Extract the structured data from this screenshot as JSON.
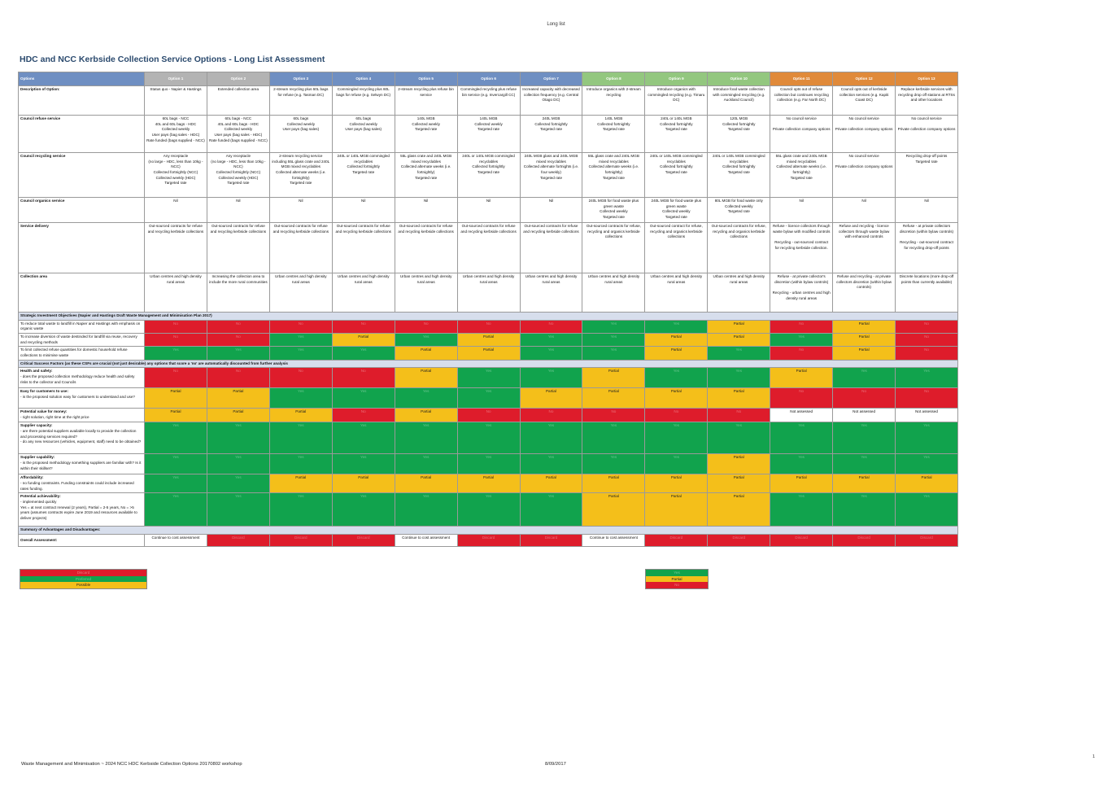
{
  "header": {
    "top_label": "Long list"
  },
  "title": "HDC and NCC Kerbside Collection Service Options - Long List Assessment",
  "columns": {
    "label_header": "Options",
    "options": [
      {
        "name": "Option 1",
        "color": "grey"
      },
      {
        "name": "Option 2",
        "color": "grey"
      },
      {
        "name": "Option 3",
        "color": "blue"
      },
      {
        "name": "Option 4",
        "color": "blue"
      },
      {
        "name": "Option 5",
        "color": "blue"
      },
      {
        "name": "Option 6",
        "color": "blue"
      },
      {
        "name": "Option 7",
        "color": "blue"
      },
      {
        "name": "Option 8",
        "color": "green"
      },
      {
        "name": "Option 9",
        "color": "green"
      },
      {
        "name": "Option 10",
        "color": "green"
      },
      {
        "name": "Option 11",
        "color": "orange"
      },
      {
        "name": "Option 12",
        "color": "orange"
      },
      {
        "name": "Option 13",
        "color": "orange"
      }
    ]
  },
  "description_rows": [
    {
      "label": "Description of Option:",
      "cells": [
        "Status quo - Napier & Hastings",
        "Extended collection area",
        "2-stream recycling plus 60L bags for refuse (e.g. Tasman DC)",
        "Commingled recycling plus 60L bags for refuse (e.g. Selwyn DC)",
        "2-stream recycling plus refuse bin service",
        "Commingled recycling plus refuse bin service (e.g. Invercargill CC)",
        "Increased capacity with decreased collection frequency (e.g. Central Otago DC)",
        "Introduce organics with 2-stream recycling",
        "Introduce organics with commingled recycling (e.g. Timaru DC)",
        "Introduce food waste collection with commingled recycling (e.g. Auckland Council)",
        "Council opts out of refuse collection but continues recycling collection (e.g. Far North DC)",
        "Council opts out of kerbside collection services (e.g. Kapiti Coast DC)",
        "Replace kerbside services with recycling drop off stations at RTSs and other locations"
      ]
    },
    {
      "label": "Council refuse service",
      "cells": [
        "60L bags - NCC\n40L and 60L bags - HDC\nCollected weekly\nUser pays (bag sales - HDC)\nRate funded (bags supplied - NCC)",
        "60L bags - NCC\n40L and 60L bags - HDC\nCollected weekly\nUser pays (bag sales - HDC)\nRate funded (bags supplied - NCC)",
        "60L bags\nCollected weekly\nUser pays (bag sales)",
        "60L bags\nCollected weekly\nUser pays (bag sales)",
        "140L MGB\nCollected weekly\nTargeted rate",
        "140L MGB\nCollected weekly\nTargeted rate",
        "240L MGB\nCollected fortnightly\nTargeted rate",
        "140L MGB\nCollected fortnightly\nTargeted rate",
        "240L or 140L MGB\nCollected fortnightly\nTargeted rate",
        "120L MGB\nCollected fortnightly\nTargeted rate",
        "No council service\n\nPrivate collection company options",
        "No council service\n\nPrivate collection company options",
        "No council service\n\nPrivate collection company options"
      ]
    },
    {
      "label": "Council recycling service",
      "cells": [
        "Any receptacle\n(no large - HDC, less than 10kg - NCC)\nCollected fortnightly (NCC)\nCollected weekly (HDC)\nTargeted rate",
        "Any receptacle\n(no large - HDC, less than 10kg - NCC)\nCollected fortnightly (NCC)\nCollected weekly (HDC)\nTargeted rate",
        "2-stream recycling service including 55L glass crate and 240L MGB mixed recyclables\nCollected alternate weeks (i.e. fortnightly)\nTargeted rate",
        "240L or 140L MGB commingled recyclables\nCollected fortnightly\nTargeted rate",
        "55L glass crate and 240L MGB mixed recyclables\nCollected alternate weeks (i.e. fortnightly)\nTargeted rate",
        "240L or 140L MGB commingled recyclables\nCollected fortnightly\nTargeted rate",
        "240L MGB glass and 240L MGB mixed recyclables\nCollected alternate fortnights (i.e. four weekly)\nTargeted rate",
        "55L glass crate and 240L MGB mixed recyclables\nCollected alternate weeks (i.e. fortnightly)\nTargeted rate",
        "240L or 140L MGB commingled recyclables\nCollected fortnightly\nTargeted rate",
        "240L or 140L MGB commingled recyclables\nCollected fortnightly\nTargeted rate",
        "55L glass crate and 240L MGB mixed recyclables\nCollected alternate weeks (i.e. fortnightly)\nTargeted rate",
        "No council service\n\nPrivate collection company options",
        "Recycling drop-off points\nTargeted rate"
      ]
    },
    {
      "label": "Council organics service",
      "cells": [
        "Nil",
        "Nil",
        "Nil",
        "Nil",
        "Nil",
        "Nil",
        "Nil",
        "240L MGB for food waste plus green waste\nCollected weekly\nTargeted rate",
        "240L MGB for food waste plus green waste\nCollected weekly\nTargeted rate",
        "80L MGB for food waste only\nCollected weekly\nTargeted rate",
        "Nil",
        "Nil",
        "Nil"
      ]
    },
    {
      "label": "Service delivery",
      "cells": [
        "Out-sourced contracts for refuse and recycling kerbside collections",
        "Out-sourced contracts for refuse and recycling kerbside collections",
        "Out-sourced contracts for refuse and recycling kerbside collections",
        "Out-sourced contracts for refuse and recycling kerbside collections",
        "Out-sourced contracts for refuse and recycling kerbside collections",
        "Out-sourced contracts for refuse and recycling kerbside collections",
        "Out-sourced contracts for refuse and recycling kerbside collections",
        "Out-sourced contracts for refuse, recycling and organics kerbside collections",
        "Out-sourced contract for refuse, recycling and organics kerbside collections",
        "Out-sourced contracts for refuse, recycling and organics kerbside collections",
        "Refuse - licence collectors through waste bylaw with modified controls\n\nRecycling - out-sourced contract for recycling kerbside collection.",
        "Refuse and recycling - licence collectors through waste bylaw with enhanced controls",
        "Refuse - at private collectors discretion (within bylaw controls)\n\nRecycling - out-sourced contract for recycling drop-off points"
      ]
    },
    {
      "label": "Collection area",
      "cells": [
        "Urban centres and high density rural areas",
        "Increasing the collection area to include the more rural communities",
        "Urban centres and high density rural areas",
        "Urban centres and high density rural areas",
        "Urban centres and high density rural areas",
        "Urban centres and high density rural areas",
        "Urban centres and high density rural areas",
        "Urban centres and high density rural areas",
        "Urban centres and high density rural areas",
        "Urban centres and high density rural areas",
        "Refuse - at private collector's discretion (within bylaw controls)\n\nRecycling - urban centres and high density rural areas",
        "Refuse and recycling - at private collectors discretion (within bylaw controls)",
        "Discrete locations (more drop-off points than currently available)"
      ]
    }
  ],
  "strategic_section": "Strategic Investment Objectives (Napier and Hastings Draft Waste Management and Minimisation Plan 2017)",
  "strategic_rows": [
    {
      "label": "To reduce total waste to landfill in Napier and Hastings with emphasis on organic waste",
      "cells": [
        "No",
        "No",
        "No",
        "No",
        "No",
        "No",
        "No",
        "Yes",
        "Yes",
        "Partial",
        "No",
        "Partial",
        "No"
      ]
    },
    {
      "label": "To increase diversion of waste destinded for landfill via reuse, recovery and recycling methods",
      "cells": [
        "No",
        "No",
        "Yes",
        "Partial",
        "Yes",
        "Partial",
        "Yes",
        "Yes",
        "Partial",
        "Partial",
        "Yes",
        "Partial",
        "No"
      ]
    },
    {
      "label": "To limit collected refuse quantities for domestic household refuse collections to minimise waste",
      "cells": [
        "Yes",
        "Yes",
        "Yes",
        "Yes",
        "Partial",
        "Partial",
        "Yes",
        "Yes",
        "Partial",
        "Yes",
        "No",
        "Partial",
        "No"
      ]
    }
  ],
  "csf_section": "Critical Success Factors (as these CSFs are crucial (not just desirable) any options that score a 'no' are automatically discounted from further analysis",
  "csf_rows": [
    {
      "label": "Health and safety:",
      "desc": "- does the proposed collection methodology reduce health and safety risks to the collector and Councils",
      "cells": [
        "No",
        "No",
        "No",
        "No",
        "Partial",
        "Yes",
        "Yes",
        "Partial",
        "Yes",
        "Yes",
        "Partial",
        "Yes",
        "Yes"
      ]
    },
    {
      "label": "Easy for customers to use:",
      "desc": "- is the proposed solution easy for customers to understand and use?",
      "cells": [
        "Partial",
        "Partial",
        "Yes",
        "Yes",
        "Yes",
        "Yes",
        "Partial",
        "Partial",
        "Partial",
        "Partial",
        "No",
        "No",
        "No"
      ]
    },
    {
      "label": "Potential value for money:",
      "desc": "- right solution, right time at the right price",
      "cells": [
        "Partial",
        "Partial",
        "Partial",
        "No",
        "Partial",
        "No",
        "No",
        "No",
        "No",
        "No",
        "Not assessed",
        "Not assessed",
        "Not assessed"
      ]
    },
    {
      "label": "Supplier capacity:",
      "desc": "- are there potential suppliers available locally to provide the collection and processing services required?\n- do any new resources (vehicles, equipment, staff) need to be obtained?",
      "cells": [
        "Yes",
        "Yes",
        "Yes",
        "Yes",
        "Yes",
        "Yes",
        "Yes",
        "Yes",
        "Yes",
        "Yes",
        "Yes",
        "Yes",
        "Yes"
      ]
    },
    {
      "label": "Supplier capability:",
      "desc": "- is the proposed methodology something suppliers are familiar with? Is it within their skillset?",
      "cells": [
        "Yes",
        "Yes",
        "Yes",
        "Yes",
        "Yes",
        "Yes",
        "Yes",
        "Yes",
        "Yes",
        "Partial",
        "Yes",
        "Yes",
        "Yes"
      ]
    },
    {
      "label": "Affordability:",
      "desc": "- no funding constraints. Funding constraints could include increased rates funding.",
      "cells": [
        "Yes",
        "Yes",
        "Partial",
        "Partial",
        "Partial",
        "Partial",
        "Partial",
        "Partial",
        "Partial",
        "Partial",
        "Partial",
        "Partial",
        "Partial"
      ]
    },
    {
      "label": "Potential achievability:",
      "desc": "- implemented quickly\nYes = at next contract renewal (2 years), Partial = 2-5 years, No = >5 years (assumes contracts expire June 2019 and resources available to deliver projects)",
      "cells": [
        "Yes",
        "Yes",
        "Yes",
        "Yes",
        "Yes",
        "Yes",
        "Yes",
        "Partial",
        "Partial",
        "Partial",
        "Yes",
        "Yes",
        "Yes"
      ]
    }
  ],
  "summary_section": "Summary of Advantages and Disadvantages:",
  "overall": {
    "label": "Overall Assessment:",
    "cells": [
      "Continue to cost assessment",
      "Discard",
      "Discard",
      "Discard",
      "Continue to cost assessment",
      "Discard",
      "Discard",
      "Continue to cost assessment",
      "Discard",
      "Discard",
      "Discard",
      "Discard",
      "Discard"
    ]
  },
  "legend_left": [
    "Discard",
    "Preferred",
    "Possible"
  ],
  "legend_right": [
    "Yes",
    "Partial",
    "No"
  ],
  "colors": {
    "red": "#de1c2b",
    "green": "#11a34d",
    "yellow": "#f4bf1a"
  },
  "footer": {
    "left": "Waste Management and Minimisation ~ 2024 NCC HDC Kerbside Collection Options 20170802 workshop",
    "center": "8/09/2017",
    "page": "1"
  }
}
